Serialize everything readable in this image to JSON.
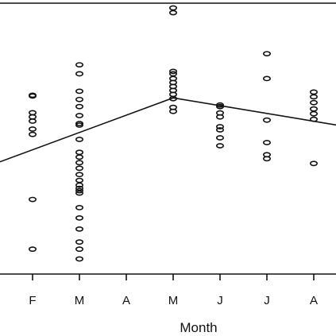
{
  "chart_data": {
    "type": "scatter",
    "title": "",
    "xlabel": "Month",
    "ylabel": "",
    "categories": [
      "F",
      "M",
      "A",
      "M",
      "J",
      "J",
      "A"
    ],
    "xlim": [
      0.5,
      7.5
    ],
    "ylim": [
      0,
      100
    ],
    "grid": false,
    "legend": "none",
    "points": [
      {
        "x": 1,
        "y": 65.8
      },
      {
        "x": 1,
        "y": 65.5
      },
      {
        "x": 1,
        "y": 59.2
      },
      {
        "x": 1,
        "y": 57.6
      },
      {
        "x": 1,
        "y": 56.0
      },
      {
        "x": 1,
        "y": 53.0
      },
      {
        "x": 1,
        "y": 51.0
      },
      {
        "x": 1,
        "y": 26.4
      },
      {
        "x": 1,
        "y": 7.6
      },
      {
        "x": 2,
        "y": 77.3
      },
      {
        "x": 2,
        "y": 73.9
      },
      {
        "x": 2,
        "y": 67.3
      },
      {
        "x": 2,
        "y": 64.2
      },
      {
        "x": 2,
        "y": 61.5
      },
      {
        "x": 2,
        "y": 58.1
      },
      {
        "x": 2,
        "y": 55.1
      },
      {
        "x": 2,
        "y": 54.5
      },
      {
        "x": 2,
        "y": 49.1
      },
      {
        "x": 2,
        "y": 44.2
      },
      {
        "x": 2,
        "y": 42.4
      },
      {
        "x": 2,
        "y": 40.3
      },
      {
        "x": 2,
        "y": 38.2
      },
      {
        "x": 2,
        "y": 35.8
      },
      {
        "x": 2,
        "y": 33.6
      },
      {
        "x": 2,
        "y": 31.8
      },
      {
        "x": 2,
        "y": 30.6
      },
      {
        "x": 2,
        "y": 29.7
      },
      {
        "x": 2,
        "y": 28.8
      },
      {
        "x": 2,
        "y": 23.3
      },
      {
        "x": 2,
        "y": 19.4
      },
      {
        "x": 2,
        "y": 15.2
      },
      {
        "x": 2,
        "y": 10.3
      },
      {
        "x": 2,
        "y": 7.6
      },
      {
        "x": 2,
        "y": 3.9
      },
      {
        "x": 4,
        "y": 98.8
      },
      {
        "x": 4,
        "y": 97.0
      },
      {
        "x": 4,
        "y": 74.8
      },
      {
        "x": 4,
        "y": 73.9
      },
      {
        "x": 4,
        "y": 72.1
      },
      {
        "x": 4,
        "y": 70.6
      },
      {
        "x": 4,
        "y": 69.1
      },
      {
        "x": 4,
        "y": 67.6
      },
      {
        "x": 4,
        "y": 66.1
      },
      {
        "x": 4,
        "y": 64.5
      },
      {
        "x": 4,
        "y": 61.2
      },
      {
        "x": 4,
        "y": 59.7
      },
      {
        "x": 5,
        "y": 62.1
      },
      {
        "x": 5,
        "y": 61.5
      },
      {
        "x": 5,
        "y": 59.1
      },
      {
        "x": 5,
        "y": 57.6
      },
      {
        "x": 5,
        "y": 53.9
      },
      {
        "x": 5,
        "y": 52.7
      },
      {
        "x": 5,
        "y": 49.7
      },
      {
        "x": 5,
        "y": 46.7
      },
      {
        "x": 6,
        "y": 81.5
      },
      {
        "x": 6,
        "y": 72.1
      },
      {
        "x": 6,
        "y": 56.4
      },
      {
        "x": 6,
        "y": 47.9
      },
      {
        "x": 6,
        "y": 43.3
      },
      {
        "x": 6,
        "y": 41.8
      },
      {
        "x": 7,
        "y": 67.0
      },
      {
        "x": 7,
        "y": 65.2
      },
      {
        "x": 7,
        "y": 63.0
      },
      {
        "x": 7,
        "y": 60.6
      },
      {
        "x": 7,
        "y": 58.8
      },
      {
        "x": 7,
        "y": 56.7
      },
      {
        "x": 7,
        "y": 40.0
      }
    ],
    "trend_line": [
      {
        "x": 0.3,
        "y": 40.6
      },
      {
        "x": 4,
        "y": 64.8
      },
      {
        "x": 7.5,
        "y": 54.5
      }
    ]
  }
}
